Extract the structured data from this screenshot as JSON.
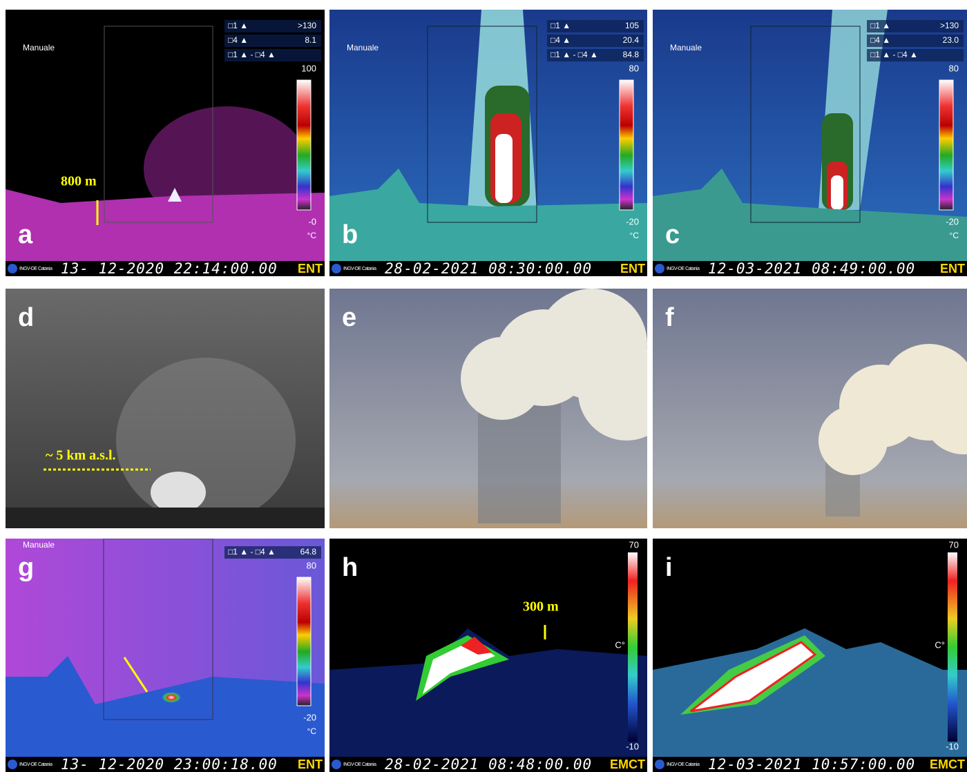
{
  "panels": [
    {
      "label": "a",
      "manuale": "Manuale",
      "readings": [
        {
          "key": "□1 ▲",
          "value": ">130"
        },
        {
          "key": "□4 ▲",
          "value": "8.1"
        },
        {
          "key": "□1 ▲ - □4 ▲"
        }
      ],
      "scale_max": "100",
      "scale_min": "-0",
      "unit": "°C",
      "annotation": "800 m",
      "logo": "INGV-OE Catania",
      "timestamp": "13- 12-2020 22:14:00.00",
      "station": "ENT"
    },
    {
      "label": "b",
      "manuale": "Manuale",
      "readings": [
        {
          "key": "□1 ▲",
          "value": "105"
        },
        {
          "key": "□4 ▲",
          "value": "20.4"
        },
        {
          "key": "□1 ▲ - □4 ▲",
          "value": "84.8"
        }
      ],
      "scale_max": "80",
      "scale_min": "-20",
      "unit": "°C",
      "logo": "INGV-OE Catania",
      "timestamp": "28-02-2021 08:30:00.00",
      "station": "ENT"
    },
    {
      "label": "c",
      "manuale": "Manuale",
      "readings": [
        {
          "key": "□1 ▲",
          "value": ">130"
        },
        {
          "key": "□4 ▲",
          "value": "23.0"
        },
        {
          "key": "□1 ▲ - □4 ▲"
        }
      ],
      "scale_max": "80",
      "scale_min": "-20",
      "unit": "°C",
      "logo": "INGV-OE Catania",
      "timestamp": "12-03-2021 08:49:00.00",
      "station": "ENT"
    },
    {
      "label": "d",
      "annotation": "~ 5 km a.s.l."
    },
    {
      "label": "e"
    },
    {
      "label": "f"
    },
    {
      "label": "g",
      "manuale": "Manuale",
      "readings": [
        {
          "key": "□1 ▲ - □4 ▲",
          "value": "64.8"
        }
      ],
      "scale_max": "80",
      "scale_min": "-20",
      "unit": "°C",
      "logo": "INGV-OE Catania",
      "timestamp": "13- 12-2020 23:00:18.00",
      "station": "ENT"
    },
    {
      "label": "h",
      "scale_max": "70",
      "scale_min": "-10",
      "unit": "C°",
      "annotation": "300 m",
      "logo": "INGV-OE Catania",
      "timestamp": "28-02-2021 08:48:00.00",
      "station": "EMCT"
    },
    {
      "label": "i",
      "scale_max": "70",
      "scale_min": "-10",
      "unit": "C°",
      "logo": "INGV-OE Catania",
      "timestamp": "12-03-2021 10:57:00.00",
      "station": "EMCT"
    }
  ]
}
